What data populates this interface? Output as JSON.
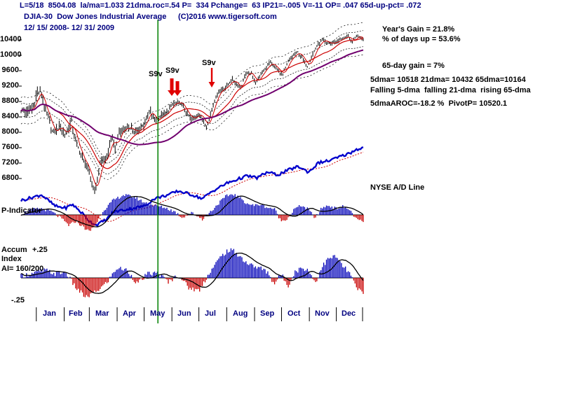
{
  "header": {
    "stats_line": "L=5/18  8504.08  la/ma=1.033 21dma.roc=.54 P=  334 Pchange=  63 IP21=-.005 V=-11 OP= .047 65d-up-pct= .072",
    "title": "DJIA-30  Dow Jones Industrial Average",
    "copyright": "(C)2016 www.tigersoft.com",
    "date_range": "12/ 15/ 2008- 12/ 31/ 2009"
  },
  "stats": {
    "years_gain": "Year's Gain = 21.8%",
    "days_up": "% of days up = 53.6%",
    "gain_65d": "65-day gain = 7%",
    "dma_values": "5dma= 10518 21dma= 10432 65dma=10164",
    "dma_trends": "Falling 5-dma  falling 21-dma  rising 65-dma",
    "aroc_pivot": "5dmaAROC=-18.2 %  PivotP= 10520.1",
    "ad_line_label": "NYSE A/D Line"
  },
  "panels": {
    "p_indicator": "P-Indicator",
    "accum": "Accum",
    "accum_plus": "+.25",
    "accum_index": "Index",
    "accum_ai": "AI= 160/200",
    "accum_minus": "-.25"
  },
  "signals": {
    "labels": [
      "S9v",
      "S9v",
      "S9v"
    ]
  },
  "axes": {
    "price_ticks": [
      10400,
      10000,
      9600,
      9200,
      8800,
      8400,
      8000,
      7600,
      7200,
      6800
    ],
    "months": [
      "Jan",
      "Feb",
      "Mar",
      "Apr",
      "May",
      "Jun",
      "Jul",
      "Aug",
      "Sep",
      "Oct",
      "Nov",
      "Dec"
    ]
  },
  "colors": {
    "header_text": "#000080",
    "bars": "#000000",
    "ma_fast": "#CC0000",
    "ma_65": "#70006E",
    "ad_line": "#0000CC",
    "indicator_pos": "#0000B8",
    "indicator_neg": "#C80000",
    "signal_arrow": "#E00000",
    "vertical_line": "#008000"
  },
  "chart_data": [
    {
      "type": "ohlc-bar",
      "name": "DJIA-30 daily price",
      "title": "DJIA-30  Dow Jones Industrial Average",
      "date_range": "12/15/2008 - 12/31/2009",
      "ylim": [
        6500,
        10700
      ],
      "y_ticks": [
        10400,
        10000,
        9600,
        9200,
        8800,
        8400,
        8000,
        7600,
        7200,
        6800
      ],
      "overlays": [
        "5-dma (red)",
        "21-dma (red)",
        "65-dma (purple)",
        "dotted trading bands"
      ],
      "x_note": "anchors are [fraction of x-axis from 12/15/2008, close value]",
      "anchors": [
        [
          0.0,
          8600
        ],
        [
          0.018,
          8520
        ],
        [
          0.037,
          8670
        ],
        [
          0.047,
          9035
        ],
        [
          0.058,
          9015
        ],
        [
          0.073,
          8474
        ],
        [
          0.084,
          8281
        ],
        [
          0.094,
          7949
        ],
        [
          0.113,
          8175
        ],
        [
          0.129,
          7937
        ],
        [
          0.147,
          8270
        ],
        [
          0.157,
          7850
        ],
        [
          0.176,
          7366
        ],
        [
          0.194,
          7063
        ],
        [
          0.21,
          6594
        ],
        [
          0.22,
          6547
        ],
        [
          0.231,
          7224
        ],
        [
          0.249,
          7278
        ],
        [
          0.265,
          7925
        ],
        [
          0.276,
          7522
        ],
        [
          0.286,
          8018
        ],
        [
          0.302,
          8083
        ],
        [
          0.323,
          8131
        ],
        [
          0.333,
          7970
        ],
        [
          0.357,
          8168
        ],
        [
          0.378,
          8575
        ],
        [
          0.391,
          8284
        ],
        [
          0.409,
          8422
        ],
        [
          0.425,
          8473
        ],
        [
          0.441,
          8721
        ],
        [
          0.467,
          8770
        ],
        [
          0.483,
          8497
        ],
        [
          0.499,
          8322
        ],
        [
          0.52,
          8504
        ],
        [
          0.543,
          8146
        ],
        [
          0.562,
          8744
        ],
        [
          0.577,
          9069
        ],
        [
          0.598,
          9172
        ],
        [
          0.617,
          9370
        ],
        [
          0.643,
          9135
        ],
        [
          0.654,
          9506
        ],
        [
          0.672,
          9544
        ],
        [
          0.685,
          9281
        ],
        [
          0.709,
          9605
        ],
        [
          0.727,
          9820
        ],
        [
          0.745,
          9665
        ],
        [
          0.764,
          9488
        ],
        [
          0.782,
          9865
        ],
        [
          0.808,
          10092
        ],
        [
          0.837,
          9713
        ],
        [
          0.863,
          10227
        ],
        [
          0.882,
          10407
        ],
        [
          0.892,
          10318
        ],
        [
          0.911,
          10310
        ],
        [
          0.929,
          10389
        ],
        [
          0.955,
          10501
        ],
        [
          0.966,
          10329
        ],
        [
          0.982,
          10520
        ],
        [
          1.0,
          10428
        ]
      ]
    },
    {
      "type": "line",
      "name": "NYSE A/D Line",
      "scale": "relative 0-100",
      "anchors": [
        [
          0.0,
          36
        ],
        [
          0.04,
          40
        ],
        [
          0.06,
          42
        ],
        [
          0.1,
          30
        ],
        [
          0.13,
          28
        ],
        [
          0.15,
          32
        ],
        [
          0.18,
          22
        ],
        [
          0.2,
          14
        ],
        [
          0.22,
          10
        ],
        [
          0.25,
          16
        ],
        [
          0.27,
          24
        ],
        [
          0.3,
          26
        ],
        [
          0.33,
          28
        ],
        [
          0.36,
          30
        ],
        [
          0.39,
          38
        ],
        [
          0.43,
          42
        ],
        [
          0.46,
          46
        ],
        [
          0.5,
          42
        ],
        [
          0.53,
          38
        ],
        [
          0.56,
          46
        ],
        [
          0.6,
          54
        ],
        [
          0.63,
          58
        ],
        [
          0.66,
          62
        ],
        [
          0.69,
          60
        ],
        [
          0.72,
          66
        ],
        [
          0.75,
          63
        ],
        [
          0.78,
          68
        ],
        [
          0.81,
          72
        ],
        [
          0.84,
          66
        ],
        [
          0.87,
          76
        ],
        [
          0.9,
          78
        ],
        [
          0.93,
          82
        ],
        [
          0.96,
          86
        ],
        [
          0.98,
          90
        ],
        [
          1.0,
          92
        ]
      ]
    },
    {
      "type": "bar",
      "name": "P-Indicator",
      "scale": "relative -1 to 1",
      "anchors": [
        [
          0.0,
          0.05
        ],
        [
          0.03,
          0.25
        ],
        [
          0.06,
          0.3
        ],
        [
          0.09,
          0.15
        ],
        [
          0.12,
          -0.2
        ],
        [
          0.14,
          -0.5
        ],
        [
          0.16,
          -0.3
        ],
        [
          0.18,
          -0.55
        ],
        [
          0.2,
          -0.8
        ],
        [
          0.22,
          -0.4
        ],
        [
          0.24,
          0.2
        ],
        [
          0.27,
          0.7
        ],
        [
          0.3,
          0.95
        ],
        [
          0.33,
          0.85
        ],
        [
          0.36,
          0.6
        ],
        [
          0.39,
          0.45
        ],
        [
          0.42,
          0.35
        ],
        [
          0.45,
          0.15
        ],
        [
          0.47,
          -0.12
        ],
        [
          0.5,
          0.1
        ],
        [
          0.53,
          -0.2
        ],
        [
          0.56,
          0.25
        ],
        [
          0.58,
          0.6
        ],
        [
          0.6,
          0.9
        ],
        [
          0.62,
          1.0
        ],
        [
          0.64,
          0.8
        ],
        [
          0.66,
          0.55
        ],
        [
          0.68,
          0.45
        ],
        [
          0.7,
          0.5
        ],
        [
          0.72,
          0.35
        ],
        [
          0.74,
          0.3
        ],
        [
          0.76,
          -0.3
        ],
        [
          0.78,
          -0.15
        ],
        [
          0.8,
          0.3
        ],
        [
          0.82,
          0.45
        ],
        [
          0.84,
          0.25
        ],
        [
          0.86,
          -0.15
        ],
        [
          0.88,
          0.35
        ],
        [
          0.9,
          0.45
        ],
        [
          0.92,
          0.3
        ],
        [
          0.94,
          0.4
        ],
        [
          0.96,
          0.25
        ],
        [
          0.98,
          -0.2
        ],
        [
          1.0,
          -0.35
        ]
      ]
    },
    {
      "type": "bar",
      "name": "Accum Index (AI= 160/200)",
      "scale": "-0.3 to 0.3",
      "level_labels": [
        "+.25",
        "-.25"
      ],
      "anchors": [
        [
          0.0,
          0.02
        ],
        [
          0.04,
          0.05
        ],
        [
          0.07,
          0.08
        ],
        [
          0.1,
          0.04
        ],
        [
          0.13,
          0.06
        ],
        [
          0.16,
          -0.1
        ],
        [
          0.19,
          -0.2
        ],
        [
          0.22,
          -0.14
        ],
        [
          0.25,
          -0.05
        ],
        [
          0.28,
          0.1
        ],
        [
          0.31,
          0.08
        ],
        [
          0.34,
          -0.06
        ],
        [
          0.37,
          0.04
        ],
        [
          0.4,
          0.05
        ],
        [
          0.43,
          -0.04
        ],
        [
          0.46,
          0.03
        ],
        [
          0.49,
          -0.1
        ],
        [
          0.52,
          -0.13
        ],
        [
          0.55,
          0.05
        ],
        [
          0.58,
          0.2
        ],
        [
          0.6,
          0.27
        ],
        [
          0.62,
          0.28
        ],
        [
          0.64,
          0.22
        ],
        [
          0.66,
          0.15
        ],
        [
          0.68,
          0.12
        ],
        [
          0.7,
          0.1
        ],
        [
          0.72,
          0.06
        ],
        [
          0.74,
          -0.06
        ],
        [
          0.76,
          0.04
        ],
        [
          0.78,
          -0.08
        ],
        [
          0.8,
          0.06
        ],
        [
          0.82,
          0.1
        ],
        [
          0.84,
          0.08
        ],
        [
          0.86,
          -0.05
        ],
        [
          0.88,
          0.12
        ],
        [
          0.9,
          0.2
        ],
        [
          0.92,
          0.22
        ],
        [
          0.94,
          0.12
        ],
        [
          0.96,
          0.05
        ],
        [
          0.98,
          -0.1
        ],
        [
          1.0,
          -0.16
        ]
      ]
    }
  ]
}
